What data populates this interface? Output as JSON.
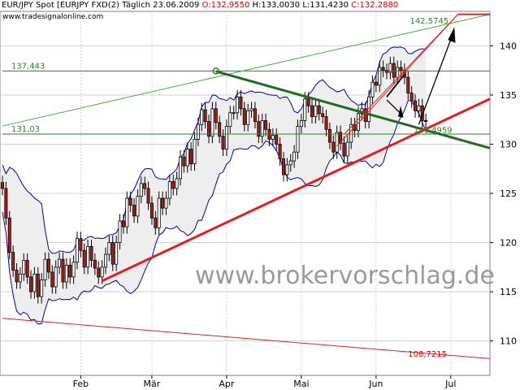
{
  "header": {
    "instrument": "EUR/JPY Spot [EURJPY FXD(2)",
    "interval": "Täglich",
    "date": "23.06.2009",
    "open": "O:132,9550",
    "high": "H:133,0030",
    "low": "L:131,4230",
    "close": "C:132,2880"
  },
  "website": "www.tradesignalonline.com",
  "watermark": "www.brokervorschlag.de",
  "colors": {
    "candle_up": "#ffffff",
    "candle_down": "#b31b1b",
    "bollinger": "#0000aa",
    "support_green": "#2e7d2e",
    "trend_red": "#e02020",
    "channel_green": "#4aa84a",
    "grid": "#c8c8c8"
  },
  "chart_data": {
    "type": "candlestick",
    "ylim": [
      106.5,
      143.5
    ],
    "yticks": [
      "110",
      "115",
      "120",
      "125",
      "130",
      "135",
      "140"
    ],
    "months": [
      {
        "label": "Feb",
        "x": 22
      },
      {
        "label": "Mär",
        "x": 42
      },
      {
        "label": "Apr",
        "x": 63
      },
      {
        "label": "Mai",
        "x": 84
      },
      {
        "label": "Jun",
        "x": 105
      },
      {
        "label": "Jul",
        "x": 126
      }
    ],
    "xlim": [
      0,
      137
    ],
    "closes": [
      125.5,
      122.5,
      119.0,
      117.2,
      116.0,
      116.8,
      118.2,
      116.5,
      115.0,
      116.8,
      114.5,
      116.2,
      118.3,
      117.0,
      115.5,
      117.5,
      118.3,
      116.0,
      117.7,
      116.5,
      118.0,
      120.4,
      119.2,
      117.5,
      119.6,
      118.2,
      117.4,
      116.5,
      117.5,
      118.8,
      120.0,
      117.8,
      120.0,
      122.2,
      121.6,
      124.5,
      123.8,
      122.7,
      124.7,
      126.0,
      125.5,
      124.0,
      122.5,
      121.5,
      124.5,
      123.5,
      124.5,
      126.2,
      125.5,
      126.5,
      128.7,
      127.8,
      129.5,
      128.0,
      130.5,
      132.0,
      133.5,
      132.3,
      130.8,
      133.6,
      132.2,
      130.8,
      129.5,
      131.8,
      133.2,
      133.2,
      134.8,
      133.6,
      132.0,
      133.4,
      133.6,
      132.3,
      130.8,
      132.4,
      131.5,
      130.5,
      130.9,
      130.0,
      128.5,
      126.9,
      127.9,
      128.3,
      129.2,
      131.8,
      132.4,
      134.6,
      133.9,
      132.8,
      133.9,
      133.1,
      132.8,
      131.5,
      130.2,
      129.2,
      131.2,
      130.1,
      128.8,
      130.2,
      132.0,
      131.4,
      133.1,
      133.6,
      132.3,
      134.8,
      136.3,
      136.0,
      137.8,
      137.5,
      137.3,
      138.2,
      136.8,
      137.8,
      137.5,
      136.8,
      135.2,
      134.4,
      133.4,
      133.9,
      132.4,
      132.3
    ],
    "levels": [
      {
        "label": "137,443",
        "value": 137.443
      },
      {
        "label": "131,03",
        "value": 131.03
      },
      {
        "label": "131,4959",
        "value": 131.4959
      },
      {
        "label": "142,5745",
        "value": 142.5745
      },
      {
        "label": "108,7215",
        "value": 108.7215
      }
    ]
  }
}
